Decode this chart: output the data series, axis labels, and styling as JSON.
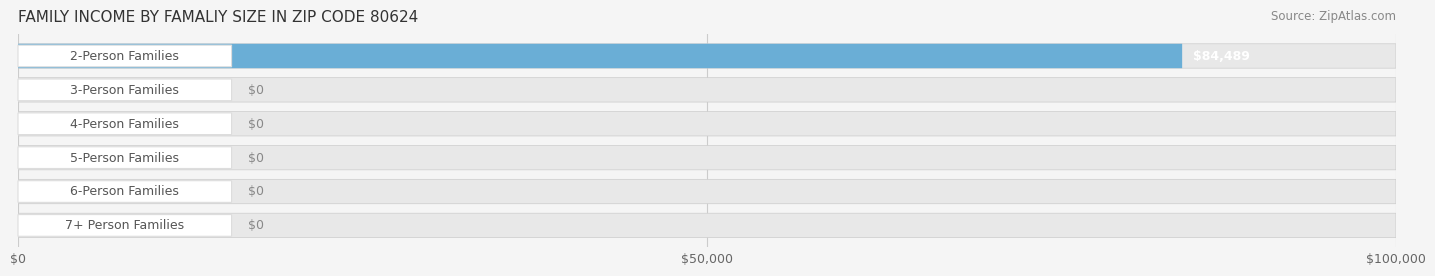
{
  "title": "FAMILY INCOME BY FAMALIY SIZE IN ZIP CODE 80624",
  "source": "Source: ZipAtlas.com",
  "categories": [
    "2-Person Families",
    "3-Person Families",
    "4-Person Families",
    "5-Person Families",
    "6-Person Families",
    "7+ Person Families"
  ],
  "values": [
    84489,
    0,
    0,
    0,
    0,
    0
  ],
  "bar_colors": [
    "#6aaed6",
    "#b5a0c8",
    "#7ec8c0",
    "#a8b8e8",
    "#f48fb1",
    "#f5c98a"
  ],
  "label_colors": [
    "#6aaed6",
    "#b5a0c8",
    "#7ec8c0",
    "#a8b8e8",
    "#f48fb1",
    "#f5c98a"
  ],
  "value_labels": [
    "$84,489",
    "$0",
    "$0",
    "$0",
    "$0",
    "$0"
  ],
  "xlim": [
    0,
    100000
  ],
  "xticks": [
    0,
    50000,
    100000
  ],
  "xtick_labels": [
    "$0",
    "$50,000",
    "$100,000"
  ],
  "background_color": "#f5f5f5",
  "bar_background_color": "#e8e8e8",
  "title_fontsize": 11,
  "source_fontsize": 8.5,
  "label_fontsize": 9,
  "value_fontsize": 9
}
